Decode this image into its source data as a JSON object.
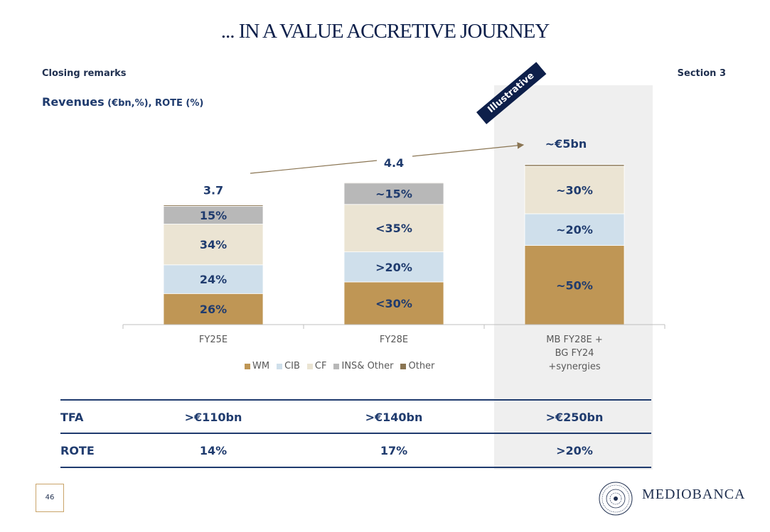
{
  "page": {
    "title": "... IN A VALUE ACCRETIVE JOURNEY",
    "header_left": "Closing remarks",
    "header_right": "Section 3",
    "subtitle_main": "Revenues",
    "subtitle_rest": " (€bn,%), ROTE (%)",
    "badge": "Illustrative",
    "page_number": "46",
    "logo_text": "MEDIOBANCA"
  },
  "colors": {
    "WM": "#bf9655",
    "CIB": "#cfdfeb",
    "CF": "#ebe4d3",
    "INS": "#b8b8b8",
    "Other": "#8a7553",
    "navy": "#1f3b6e"
  },
  "chart_data": {
    "type": "bar",
    "stacked": true,
    "categories": [
      "FY25E",
      "FY28E",
      "MB FY28E +\nBG FY24\n+synergies"
    ],
    "category_lines": [
      [
        "FY25E"
      ],
      [
        "FY28E"
      ],
      [
        "MB FY28E +",
        "BG FY24",
        "+synergies"
      ]
    ],
    "totals": [
      3.7,
      4.4,
      5.0
    ],
    "total_labels": [
      "3.7",
      "4.4",
      "~€5bn"
    ],
    "series": [
      {
        "name": "WM",
        "values": [
          0.96,
          1.32,
          2.45
        ],
        "labels": [
          "26%",
          "<30%",
          "~50%"
        ]
      },
      {
        "name": "CIB",
        "values": [
          0.89,
          0.93,
          0.98
        ],
        "labels": [
          "24%",
          ">20%",
          "~20%"
        ]
      },
      {
        "name": "CF",
        "values": [
          1.26,
          1.47,
          1.47
        ],
        "labels": [
          "34%",
          "<35%",
          "~30%"
        ]
      },
      {
        "name": "INS& Other",
        "values": [
          0.55,
          0.66,
          0.0
        ],
        "labels": [
          "15%",
          "~15%",
          ""
        ]
      },
      {
        "name": "Other",
        "values": [
          0.04,
          0.02,
          0.05
        ],
        "labels": [
          "",
          "",
          ""
        ]
      }
    ],
    "ylim": [
      0,
      5.2
    ]
  },
  "legend": [
    "WM",
    "CIB",
    "CF",
    "INS& Other",
    "Other"
  ],
  "table": {
    "rows": [
      {
        "label": "TFA",
        "values": [
          ">€110bn",
          ">€140bn",
          ">€250bn"
        ]
      },
      {
        "label": "ROTE",
        "values": [
          "14%",
          "17%",
          ">20%"
        ]
      }
    ]
  }
}
